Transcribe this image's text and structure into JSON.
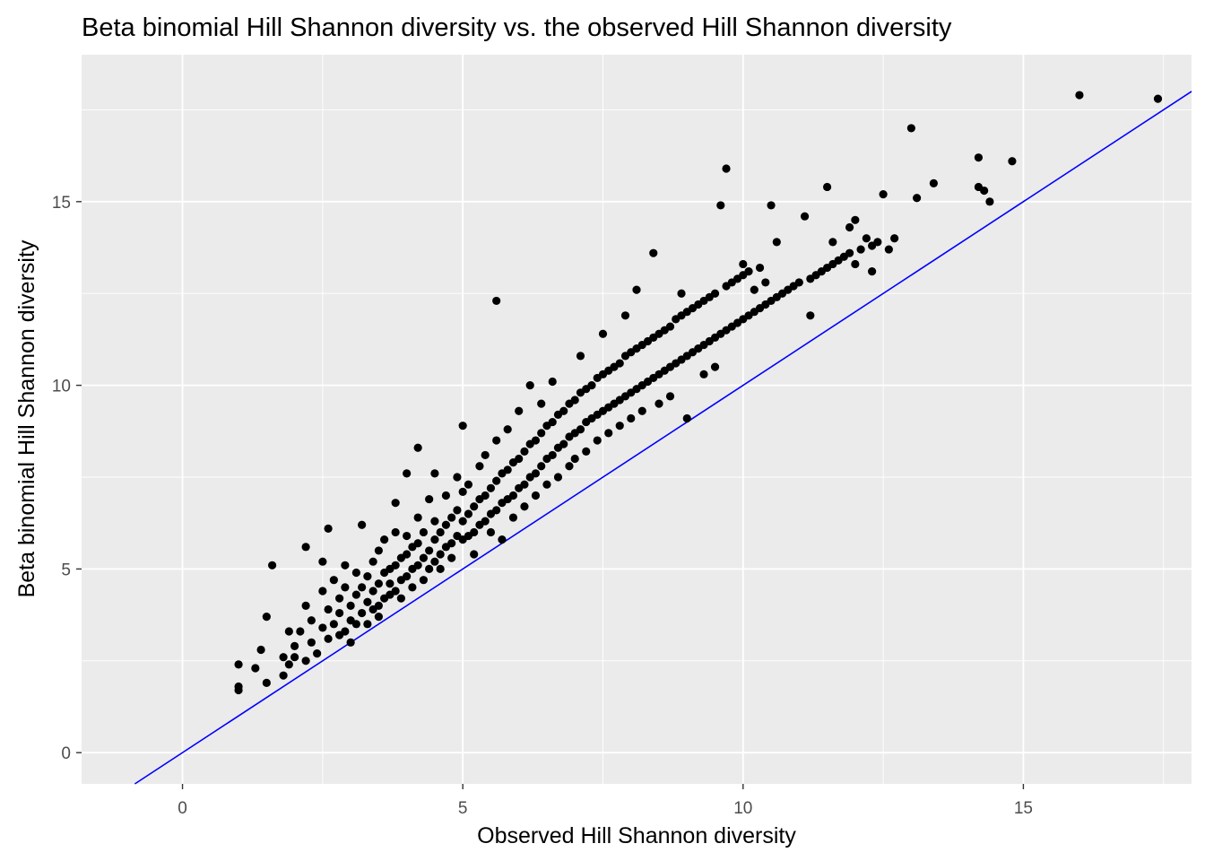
{
  "chart_data": {
    "type": "scatter",
    "title": "Beta binomial Hill Shannon diversity vs. the observed Hill Shannon diversity",
    "xlabel": "Observed Hill Shannon diversity",
    "ylabel": "Beta binomial Hill Shannon diversity",
    "xlim": [
      -1.8,
      18.0
    ],
    "ylim": [
      -0.85,
      19.0
    ],
    "x_ticks": [
      0,
      5,
      10,
      15
    ],
    "y_ticks": [
      0,
      5,
      10,
      15
    ],
    "x_tick_labels": [
      "0",
      "5",
      "10",
      "15"
    ],
    "y_tick_labels": [
      "0",
      "5",
      "10",
      "15"
    ],
    "grid": true,
    "panel_background": "#ebebeb",
    "grid_color": "#ffffff",
    "point_color": "#000000",
    "reference_line": {
      "slope": 1,
      "intercept": 0,
      "color": "#0000ff"
    },
    "series": [
      {
        "points": [
          [
            1.0,
            1.7
          ],
          [
            1.0,
            1.8
          ],
          [
            1.0,
            2.4
          ],
          [
            1.3,
            2.3
          ],
          [
            1.4,
            2.8
          ],
          [
            1.5,
            3.7
          ],
          [
            1.5,
            1.9
          ],
          [
            1.6,
            5.1
          ],
          [
            1.8,
            2.1
          ],
          [
            1.8,
            2.6
          ],
          [
            1.9,
            3.3
          ],
          [
            1.9,
            2.4
          ],
          [
            2.0,
            2.6
          ],
          [
            2.0,
            2.9
          ],
          [
            2.1,
            3.3
          ],
          [
            2.2,
            4.0
          ],
          [
            2.2,
            2.5
          ],
          [
            2.2,
            5.6
          ],
          [
            2.3,
            3.0
          ],
          [
            2.3,
            3.6
          ],
          [
            2.4,
            2.7
          ],
          [
            2.5,
            3.4
          ],
          [
            2.5,
            4.4
          ],
          [
            2.5,
            5.2
          ],
          [
            2.6,
            3.1
          ],
          [
            2.6,
            3.9
          ],
          [
            2.6,
            6.1
          ],
          [
            2.7,
            3.5
          ],
          [
            2.7,
            4.7
          ],
          [
            2.8,
            3.2
          ],
          [
            2.8,
            4.2
          ],
          [
            2.8,
            3.8
          ],
          [
            2.9,
            3.3
          ],
          [
            2.9,
            4.5
          ],
          [
            2.9,
            5.1
          ],
          [
            3.0,
            3.0
          ],
          [
            3.0,
            3.6
          ],
          [
            3.0,
            4.0
          ],
          [
            3.1,
            3.5
          ],
          [
            3.1,
            4.3
          ],
          [
            3.1,
            4.9
          ],
          [
            3.2,
            3.8
          ],
          [
            3.2,
            4.5
          ],
          [
            3.2,
            6.2
          ],
          [
            3.3,
            3.5
          ],
          [
            3.3,
            4.1
          ],
          [
            3.3,
            4.8
          ],
          [
            3.4,
            3.9
          ],
          [
            3.4,
            4.4
          ],
          [
            3.4,
            5.2
          ],
          [
            3.5,
            4.0
          ],
          [
            3.5,
            4.6
          ],
          [
            3.5,
            5.5
          ],
          [
            3.5,
            3.7
          ],
          [
            3.6,
            4.2
          ],
          [
            3.6,
            4.9
          ],
          [
            3.6,
            5.8
          ],
          [
            3.7,
            4.3
          ],
          [
            3.7,
            5.0
          ],
          [
            3.7,
            4.6
          ],
          [
            3.8,
            4.4
          ],
          [
            3.8,
            5.1
          ],
          [
            3.8,
            6.0
          ],
          [
            3.8,
            6.8
          ],
          [
            3.9,
            4.7
          ],
          [
            3.9,
            5.3
          ],
          [
            3.9,
            4.2
          ],
          [
            4.0,
            4.8
          ],
          [
            4.0,
            5.4
          ],
          [
            4.0,
            5.9
          ],
          [
            4.0,
            7.6
          ],
          [
            4.1,
            4.5
          ],
          [
            4.1,
            5.0
          ],
          [
            4.1,
            5.6
          ],
          [
            4.2,
            5.1
          ],
          [
            4.2,
            5.7
          ],
          [
            4.2,
            6.4
          ],
          [
            4.2,
            8.3
          ],
          [
            4.3,
            4.7
          ],
          [
            4.3,
            5.3
          ],
          [
            4.3,
            6.0
          ],
          [
            4.4,
            5.0
          ],
          [
            4.4,
            5.5
          ],
          [
            4.4,
            6.9
          ],
          [
            4.5,
            5.2
          ],
          [
            4.5,
            5.8
          ],
          [
            4.5,
            6.3
          ],
          [
            4.5,
            7.6
          ],
          [
            4.6,
            5.4
          ],
          [
            4.6,
            6.0
          ],
          [
            4.6,
            5.0
          ],
          [
            4.7,
            5.6
          ],
          [
            4.7,
            6.2
          ],
          [
            4.7,
            7.0
          ],
          [
            4.8,
            5.7
          ],
          [
            4.8,
            6.4
          ],
          [
            4.8,
            5.3
          ],
          [
            4.9,
            5.9
          ],
          [
            4.9,
            6.6
          ],
          [
            4.9,
            7.5
          ],
          [
            5.0,
            5.8
          ],
          [
            5.0,
            6.3
          ],
          [
            5.0,
            7.1
          ],
          [
            5.0,
            8.9
          ],
          [
            5.1,
            5.9
          ],
          [
            5.1,
            6.5
          ],
          [
            5.1,
            7.3
          ],
          [
            5.2,
            6.0
          ],
          [
            5.2,
            6.7
          ],
          [
            5.2,
            5.4
          ],
          [
            5.3,
            6.2
          ],
          [
            5.3,
            6.9
          ],
          [
            5.3,
            7.8
          ],
          [
            5.4,
            6.3
          ],
          [
            5.4,
            7.0
          ],
          [
            5.4,
            8.1
          ],
          [
            5.5,
            6.5
          ],
          [
            5.5,
            7.2
          ],
          [
            5.5,
            6.0
          ],
          [
            5.6,
            6.6
          ],
          [
            5.6,
            7.4
          ],
          [
            5.6,
            8.5
          ],
          [
            5.6,
            12.3
          ],
          [
            5.7,
            6.8
          ],
          [
            5.7,
            7.6
          ],
          [
            5.7,
            5.8
          ],
          [
            5.8,
            6.9
          ],
          [
            5.8,
            7.7
          ],
          [
            5.8,
            8.8
          ],
          [
            5.9,
            7.0
          ],
          [
            5.9,
            7.9
          ],
          [
            5.9,
            6.4
          ],
          [
            6.0,
            7.2
          ],
          [
            6.0,
            8.0
          ],
          [
            6.0,
            9.3
          ],
          [
            6.1,
            7.3
          ],
          [
            6.1,
            8.2
          ],
          [
            6.1,
            6.7
          ],
          [
            6.2,
            7.5
          ],
          [
            6.2,
            8.4
          ],
          [
            6.2,
            10.0
          ],
          [
            6.3,
            7.6
          ],
          [
            6.3,
            8.5
          ],
          [
            6.3,
            7.0
          ],
          [
            6.4,
            7.8
          ],
          [
            6.4,
            8.7
          ],
          [
            6.4,
            9.5
          ],
          [
            6.5,
            8.0
          ],
          [
            6.5,
            8.9
          ],
          [
            6.5,
            7.3
          ],
          [
            6.6,
            8.1
          ],
          [
            6.6,
            9.0
          ],
          [
            6.6,
            10.1
          ],
          [
            6.7,
            8.3
          ],
          [
            6.7,
            9.2
          ],
          [
            6.7,
            7.5
          ],
          [
            6.8,
            8.4
          ],
          [
            6.8,
            9.3
          ],
          [
            6.9,
            8.6
          ],
          [
            6.9,
            9.5
          ],
          [
            6.9,
            7.8
          ],
          [
            7.0,
            8.7
          ],
          [
            7.0,
            9.6
          ],
          [
            7.0,
            8.0
          ],
          [
            7.1,
            8.8
          ],
          [
            7.1,
            9.8
          ],
          [
            7.1,
            10.8
          ],
          [
            7.2,
            9.0
          ],
          [
            7.2,
            9.9
          ],
          [
            7.2,
            8.2
          ],
          [
            7.3,
            9.1
          ],
          [
            7.3,
            10.0
          ],
          [
            7.4,
            9.2
          ],
          [
            7.4,
            10.2
          ],
          [
            7.4,
            8.5
          ],
          [
            7.5,
            9.3
          ],
          [
            7.5,
            10.3
          ],
          [
            7.5,
            11.4
          ],
          [
            7.6,
            9.4
          ],
          [
            7.6,
            10.4
          ],
          [
            7.6,
            8.7
          ],
          [
            7.7,
            9.5
          ],
          [
            7.7,
            10.5
          ],
          [
            7.8,
            9.6
          ],
          [
            7.8,
            10.6
          ],
          [
            7.8,
            8.9
          ],
          [
            7.9,
            9.7
          ],
          [
            7.9,
            10.8
          ],
          [
            7.9,
            11.9
          ],
          [
            8.0,
            9.8
          ],
          [
            8.0,
            10.9
          ],
          [
            8.0,
            9.1
          ],
          [
            8.1,
            9.9
          ],
          [
            8.1,
            11.0
          ],
          [
            8.1,
            12.6
          ],
          [
            8.2,
            10.0
          ],
          [
            8.2,
            11.1
          ],
          [
            8.2,
            9.3
          ],
          [
            8.3,
            10.1
          ],
          [
            8.3,
            11.2
          ],
          [
            8.4,
            10.2
          ],
          [
            8.4,
            11.3
          ],
          [
            8.4,
            13.6
          ],
          [
            8.5,
            10.3
          ],
          [
            8.5,
            11.4
          ],
          [
            8.5,
            9.5
          ],
          [
            8.6,
            10.4
          ],
          [
            8.6,
            11.5
          ],
          [
            8.7,
            10.5
          ],
          [
            8.7,
            11.6
          ],
          [
            8.7,
            9.7
          ],
          [
            8.8,
            10.6
          ],
          [
            8.8,
            11.8
          ],
          [
            8.9,
            10.7
          ],
          [
            8.9,
            11.9
          ],
          [
            8.9,
            12.5
          ],
          [
            9.0,
            10.8
          ],
          [
            9.0,
            12.0
          ],
          [
            9.0,
            9.1
          ],
          [
            9.1,
            10.9
          ],
          [
            9.1,
            12.1
          ],
          [
            9.2,
            11.0
          ],
          [
            9.2,
            12.2
          ],
          [
            9.3,
            11.1
          ],
          [
            9.3,
            12.3
          ],
          [
            9.3,
            10.3
          ],
          [
            9.4,
            11.2
          ],
          [
            9.4,
            12.4
          ],
          [
            9.5,
            11.3
          ],
          [
            9.5,
            12.5
          ],
          [
            9.5,
            10.5
          ],
          [
            9.6,
            11.4
          ],
          [
            9.6,
            14.9
          ],
          [
            9.7,
            11.5
          ],
          [
            9.7,
            12.7
          ],
          [
            9.7,
            15.9
          ],
          [
            9.8,
            11.6
          ],
          [
            9.8,
            12.8
          ],
          [
            9.9,
            11.7
          ],
          [
            9.9,
            12.9
          ],
          [
            10.0,
            11.8
          ],
          [
            10.0,
            13.0
          ],
          [
            10.0,
            13.3
          ],
          [
            10.1,
            11.9
          ],
          [
            10.1,
            13.1
          ],
          [
            10.2,
            12.0
          ],
          [
            10.2,
            12.6
          ],
          [
            10.3,
            12.1
          ],
          [
            10.3,
            13.2
          ],
          [
            10.4,
            12.2
          ],
          [
            10.4,
            12.8
          ],
          [
            10.5,
            12.3
          ],
          [
            10.5,
            14.9
          ],
          [
            10.6,
            12.4
          ],
          [
            10.6,
            13.9
          ],
          [
            10.7,
            12.5
          ],
          [
            10.8,
            12.6
          ],
          [
            10.9,
            12.7
          ],
          [
            11.0,
            12.8
          ],
          [
            11.1,
            14.6
          ],
          [
            11.2,
            12.9
          ],
          [
            11.2,
            11.9
          ],
          [
            11.3,
            13.0
          ],
          [
            11.4,
            13.1
          ],
          [
            11.5,
            13.2
          ],
          [
            11.5,
            15.4
          ],
          [
            11.6,
            13.3
          ],
          [
            11.6,
            13.9
          ],
          [
            11.7,
            13.4
          ],
          [
            11.8,
            13.5
          ],
          [
            11.9,
            13.6
          ],
          [
            11.9,
            14.3
          ],
          [
            12.0,
            14.5
          ],
          [
            12.0,
            13.3
          ],
          [
            12.1,
            13.7
          ],
          [
            12.2,
            14.0
          ],
          [
            12.3,
            13.8
          ],
          [
            12.3,
            13.1
          ],
          [
            12.4,
            13.9
          ],
          [
            12.5,
            15.2
          ],
          [
            12.6,
            13.7
          ],
          [
            12.7,
            14.0
          ],
          [
            13.0,
            17.0
          ],
          [
            13.1,
            15.1
          ],
          [
            13.4,
            15.5
          ],
          [
            14.2,
            16.2
          ],
          [
            14.2,
            15.4
          ],
          [
            14.3,
            15.3
          ],
          [
            14.4,
            15.0
          ],
          [
            14.8,
            16.1
          ],
          [
            16.0,
            17.9
          ],
          [
            17.4,
            17.8
          ]
        ]
      }
    ]
  }
}
